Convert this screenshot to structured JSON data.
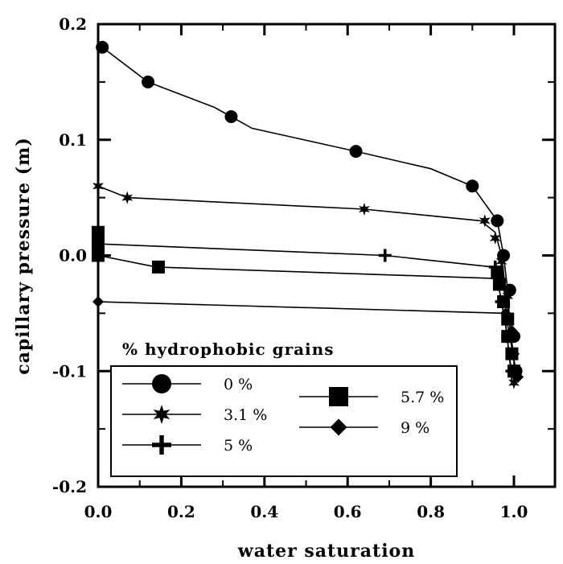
{
  "chart_data": {
    "type": "line",
    "xlabel": "water saturation",
    "ylabel": "capillary pressure (m)",
    "xlim": [
      0,
      1.1
    ],
    "ylim": [
      -0.2,
      0.2
    ],
    "x_ticks": [
      0.0,
      0.2,
      0.4,
      0.6,
      0.8,
      1.0
    ],
    "x_tick_labels": [
      "0.0",
      "0.2",
      "0.4",
      "0.6",
      "0.8",
      "1.0"
    ],
    "y_ticks": [
      -0.2,
      -0.1,
      0.0,
      0.1,
      0.2
    ],
    "y_tick_labels": [
      "-0.2",
      "-0.1",
      "0.0",
      "0.1",
      "0.2"
    ],
    "grid": false,
    "legend": {
      "title": "% hydrophobic grains",
      "placement": "bottom-left"
    },
    "series": [
      {
        "name": "0 %",
        "marker": "circle",
        "points": [
          [
            0.01,
            0.18
          ],
          [
            0.12,
            0.15
          ],
          [
            0.28,
            0.128
          ],
          [
            0.32,
            0.12
          ],
          [
            0.37,
            0.11
          ],
          [
            0.62,
            0.09
          ],
          [
            0.8,
            0.075
          ],
          [
            0.9,
            0.06
          ],
          [
            0.96,
            0.03
          ],
          [
            0.975,
            0.0
          ],
          [
            0.985,
            -0.03
          ],
          [
            0.99,
            -0.06
          ],
          [
            1.0,
            -0.09
          ],
          [
            1.005,
            -0.11
          ]
        ],
        "marker_points": [
          [
            0.01,
            0.18
          ],
          [
            0.12,
            0.15
          ],
          [
            0.32,
            0.12
          ],
          [
            0.62,
            0.09
          ],
          [
            0.9,
            0.06
          ],
          [
            0.96,
            0.03
          ],
          [
            0.975,
            0.0
          ],
          [
            0.99,
            -0.03
          ],
          [
            1.0,
            -0.07
          ],
          [
            1.005,
            -0.1
          ]
        ]
      },
      {
        "name": "3.1 %",
        "marker": "star",
        "points": [
          [
            0.0,
            0.06
          ],
          [
            0.07,
            0.05
          ],
          [
            0.64,
            0.04
          ],
          [
            0.92,
            0.03
          ],
          [
            0.955,
            0.02
          ],
          [
            0.97,
            0.0
          ],
          [
            0.98,
            -0.03
          ],
          [
            0.99,
            -0.06
          ],
          [
            1.0,
            -0.09
          ],
          [
            1.0,
            -0.11
          ]
        ],
        "marker_points": [
          [
            0.0,
            0.06
          ],
          [
            0.07,
            0.05
          ],
          [
            0.64,
            0.04
          ],
          [
            0.93,
            0.03
          ],
          [
            0.955,
            0.015
          ],
          [
            0.97,
            -0.005
          ],
          [
            0.985,
            -0.035
          ],
          [
            0.995,
            -0.07
          ],
          [
            1.0,
            -0.1
          ],
          [
            1.0,
            -0.11
          ]
        ]
      },
      {
        "name": "5 %",
        "marker": "plus",
        "points": [
          [
            0.0,
            0.01
          ],
          [
            0.69,
            0.0
          ],
          [
            0.95,
            -0.01
          ],
          [
            0.965,
            -0.03
          ],
          [
            0.98,
            -0.06
          ],
          [
            0.99,
            -0.09
          ],
          [
            0.995,
            -0.11
          ]
        ],
        "marker_points": [
          [
            0.0,
            0.01
          ],
          [
            0.69,
            0.0
          ],
          [
            0.955,
            -0.01
          ],
          [
            0.97,
            -0.04
          ],
          [
            0.985,
            -0.07
          ],
          [
            0.995,
            -0.1
          ]
        ]
      },
      {
        "name": "5.7 %",
        "marker": "square",
        "points": [
          [
            0.0,
            0.0
          ],
          [
            0.14,
            -0.01
          ],
          [
            0.96,
            -0.02
          ],
          [
            0.97,
            -0.04
          ],
          [
            0.98,
            -0.06
          ],
          [
            0.99,
            -0.09
          ],
          [
            1.0,
            -0.11
          ]
        ],
        "marker_points": [
          [
            0.0,
            0.02
          ],
          [
            0.0,
            0.01
          ],
          [
            0.0,
            0.0
          ],
          [
            0.145,
            -0.01
          ],
          [
            0.96,
            -0.015
          ],
          [
            0.965,
            -0.025
          ],
          [
            0.975,
            -0.04
          ],
          [
            0.985,
            -0.055
          ],
          [
            0.985,
            -0.07
          ],
          [
            0.995,
            -0.085
          ],
          [
            1.0,
            -0.1
          ]
        ]
      },
      {
        "name": "9 %",
        "marker": "diamond",
        "points": [
          [
            0.0,
            -0.04
          ],
          [
            0.98,
            -0.05
          ],
          [
            0.99,
            -0.07
          ],
          [
            1.0,
            -0.09
          ],
          [
            1.01,
            -0.11
          ]
        ],
        "marker_points": [
          [
            0.0,
            -0.04
          ],
          [
            0.98,
            -0.05
          ],
          [
            0.995,
            -0.065
          ],
          [
            1.0,
            -0.085
          ],
          [
            1.01,
            -0.105
          ]
        ]
      }
    ]
  }
}
